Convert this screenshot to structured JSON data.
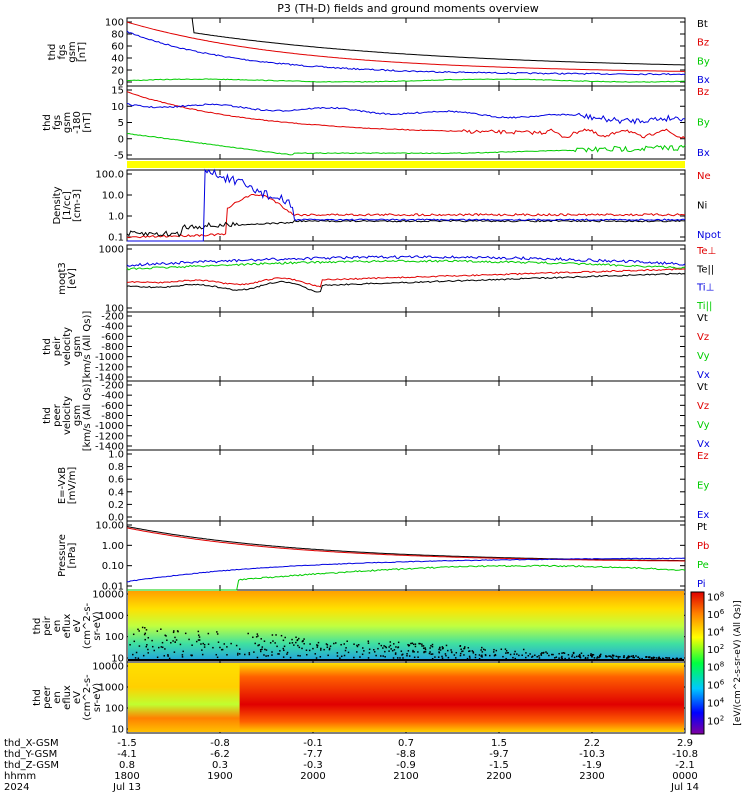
{
  "title": "P3 (TH-D) fields and ground moments overview",
  "colors": {
    "black": "#000000",
    "red": "#e00000",
    "green": "#00cc00",
    "blue": "#0000e0",
    "yellow": "#ffff00"
  },
  "chart_data": [
    {
      "type": "line",
      "ylabel_lines": [
        "thd",
        "fgs",
        "gsm",
        "[nT]"
      ],
      "ylim": [
        -5,
        100
      ],
      "yticks": [
        "100",
        "80",
        "60",
        "40",
        "20",
        "0"
      ],
      "legend": [
        {
          "name": "Bt",
          "color": "black"
        },
        {
          "name": "Bz",
          "color": "red"
        },
        {
          "name": "By",
          "color": "green"
        },
        {
          "name": "Bx",
          "color": "blue"
        }
      ]
    },
    {
      "type": "line",
      "ylabel_lines": [
        "thd",
        "fgs",
        "gsm",
        "-180",
        "[nT]"
      ],
      "ylim": [
        -8,
        18
      ],
      "yticks": [
        "15",
        "10",
        "5",
        "0",
        "-5"
      ],
      "legend": [
        {
          "name": "Bz",
          "color": "red"
        },
        {
          "name": "By",
          "color": "green"
        },
        {
          "name": "Bx",
          "color": "blue"
        }
      ]
    },
    {
      "type": "line",
      "ylabel_lines": [
        "Density",
        "[1/cc]",
        "[cm-3]"
      ],
      "scale": "log",
      "yticks": [
        "100.0",
        "10.0",
        "1.0",
        "0.1"
      ],
      "legend": [
        {
          "name": "Ne",
          "color": "red"
        },
        {
          "name": "Ni",
          "color": "black"
        },
        {
          "name": "Npot",
          "color": "blue"
        }
      ]
    },
    {
      "type": "line",
      "ylabel_lines": [
        "moqt3",
        "[eV]"
      ],
      "scale": "log",
      "yticks": [
        "1000",
        "100"
      ],
      "legend": [
        {
          "name": "Te⊥",
          "color": "red"
        },
        {
          "name": "Te||",
          "color": "black"
        },
        {
          "name": "Ti⊥",
          "color": "blue"
        },
        {
          "name": "Ti||",
          "color": "green"
        }
      ]
    },
    {
      "type": "line",
      "ylabel_lines": [
        "thd",
        "peir",
        "velocity",
        "gsm",
        "[km/s (All Qs)]"
      ],
      "yticks": [
        "-200",
        "-400",
        "-600",
        "-800",
        "-1000",
        "-1200",
        "-1400"
      ],
      "legend": [
        {
          "name": "Vt",
          "color": "black"
        },
        {
          "name": "Vz",
          "color": "red"
        },
        {
          "name": "Vy",
          "color": "green"
        },
        {
          "name": "Vx",
          "color": "blue"
        }
      ]
    },
    {
      "type": "line",
      "ylabel_lines": [
        "thd",
        "peer",
        "velocity",
        "gsm",
        "[km/s (All Qs)]"
      ],
      "yticks": [
        "-200",
        "-400",
        "-600",
        "-800",
        "-1000",
        "-1200",
        "-1400"
      ],
      "legend": [
        {
          "name": "Vt",
          "color": "black"
        },
        {
          "name": "Vz",
          "color": "red"
        },
        {
          "name": "Vy",
          "color": "green"
        },
        {
          "name": "Vx",
          "color": "blue"
        }
      ]
    },
    {
      "type": "line",
      "ylabel_lines": [
        "E=-VxB",
        "[mV/m]"
      ],
      "ylim": [
        0,
        1
      ],
      "yticks": [
        "1.0",
        "0.8",
        "0.6",
        "0.4",
        "0.2",
        "0.0"
      ],
      "legend": [
        {
          "name": "Ez",
          "color": "red"
        },
        {
          "name": "Ey",
          "color": "green"
        },
        {
          "name": "Ex",
          "color": "blue"
        }
      ]
    },
    {
      "type": "line",
      "ylabel_lines": [
        "Pressure",
        "[nPa]"
      ],
      "scale": "log",
      "yticks": [
        "10.00",
        "1.00",
        "0.10",
        "0.01"
      ],
      "legend": [
        {
          "name": "Pt",
          "color": "black"
        },
        {
          "name": "Pb",
          "color": "red"
        },
        {
          "name": "Pe",
          "color": "green"
        },
        {
          "name": "Pi",
          "color": "blue"
        }
      ]
    },
    {
      "type": "heatmap",
      "ylabel_lines": [
        "thd",
        "peir",
        "en",
        "eflux",
        "eV",
        "(cm^2-s-",
        "sr-eV)"
      ],
      "yticks": [
        "10000",
        "1000",
        "100",
        "10"
      ]
    },
    {
      "type": "heatmap",
      "ylabel_lines": [
        "thd",
        "peer",
        "en",
        "eflux",
        "eV",
        "(cm^2-s-",
        "sr-eV)"
      ],
      "yticks": [
        "10000",
        "1000",
        "100",
        "10"
      ]
    }
  ],
  "colorbar": {
    "label": "[eV/(cm^2-s-sr-eV) (All Qs)]",
    "top_ticks": [
      "10^8",
      "10^6",
      "10^4",
      "10^2"
    ],
    "bottom_ticks": [
      "10^8",
      "10^6",
      "10^4",
      "10^2"
    ]
  },
  "xaxis": {
    "rows": [
      {
        "label": "thd_X-GSM",
        "values": [
          "-1.5",
          "-0.8",
          "-0.1",
          "0.7",
          "1.5",
          "2.2",
          "2.9"
        ]
      },
      {
        "label": "thd_Y-GSM",
        "values": [
          "-4.1",
          "-6.2",
          "-7.7",
          "-8.8",
          "-9.7",
          "-10.3",
          "-10.8"
        ]
      },
      {
        "label": "thd_Z-GSM",
        "values": [
          "0.8",
          "0.3",
          "-0.3",
          "-0.9",
          "-1.5",
          "-1.9",
          "-2.1"
        ]
      },
      {
        "label": "hhmm",
        "values": [
          "1800",
          "1900",
          "2000",
          "2100",
          "2200",
          "2300",
          "0000"
        ]
      },
      {
        "label": "2024",
        "values": [
          "Jul 13",
          "",
          "",
          "",
          "",
          "",
          "Jul 14"
        ]
      }
    ]
  }
}
